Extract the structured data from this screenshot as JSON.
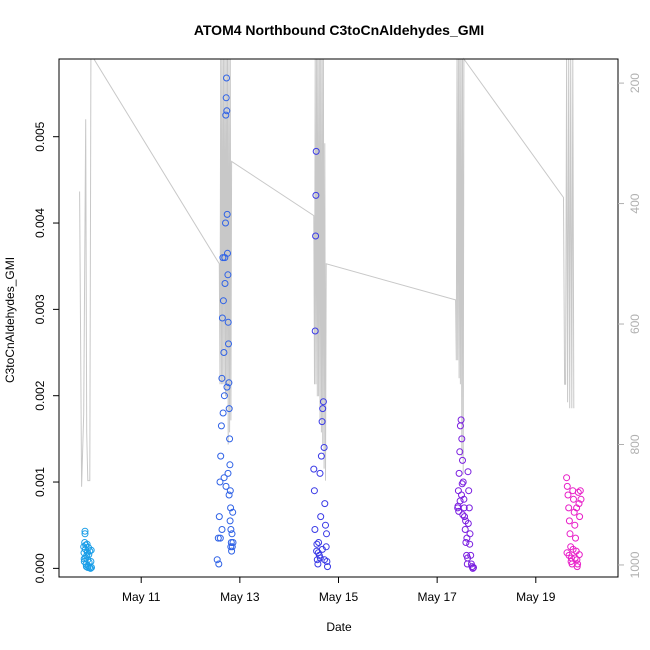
{
  "chart_data": {
    "type": "scatter",
    "title": "ATOM4 Northbound C3toCnAldehydes_GMI",
    "xlabel": "Date",
    "ylabel": "C3toCnAldehydes_GMI",
    "xlim": [
      "2018-05-09T08:00",
      "2018-05-20T16:00"
    ],
    "ylim": [
      -0.0001,
      0.0059
    ],
    "x_ticks": [
      "May 11",
      "May 13",
      "May 15",
      "May 17",
      "May 19"
    ],
    "x_tick_values": [
      "2018-05-11",
      "2018-05-13",
      "2018-05-15",
      "2018-05-17",
      "2018-05-19"
    ],
    "y_ticks": [
      "0.000",
      "0.001",
      "0.002",
      "0.003",
      "0.004",
      "0.005"
    ],
    "y_tick_values": [
      0,
      0.001,
      0.002,
      0.003,
      0.004,
      0.005
    ],
    "y2_ticks": [
      "200",
      "400",
      "600",
      "800",
      "1000"
    ],
    "y2_tick_values": [
      200,
      400,
      600,
      800,
      1000
    ],
    "y2_lim": [
      1020,
      160
    ],
    "grid": false,
    "series": [
      {
        "color": "#1a9ee8",
        "points": [
          [
            "2018-05-09T20:00",
            0.00025
          ],
          [
            "2018-05-09T20:10",
            0.00018
          ],
          [
            "2018-05-09T20:20",
            8e-05
          ],
          [
            "2018-05-09T20:30",
            0.0003
          ],
          [
            "2018-05-09T20:40",
            0.00043
          ],
          [
            "2018-05-09T20:50",
            0.00022
          ],
          [
            "2018-05-09T21:00",
            0.00012
          ],
          [
            "2018-05-09T21:10",
            5e-05
          ],
          [
            "2018-05-09T21:20",
            2e-05
          ],
          [
            "2018-05-09T21:30",
            0.00015
          ],
          [
            "2018-05-09T21:40",
            0.00028
          ],
          [
            "2018-05-09T21:50",
            0.00019
          ],
          [
            "2018-05-09T22:00",
            0.0001
          ],
          [
            "2018-05-09T22:10",
            3e-05
          ],
          [
            "2018-05-09T22:20",
            0.00024
          ],
          [
            "2018-05-09T22:30",
            0.00016
          ],
          [
            "2018-05-09T22:40",
            7e-05
          ],
          [
            "2018-05-09T22:50",
            1e-05
          ],
          [
            "2018-05-09T23:00",
            0.0002
          ],
          [
            "2018-05-09T23:20",
            0.0
          ],
          [
            "2018-05-09T23:30",
            8e-05
          ],
          [
            "2018-05-09T23:40",
            0.00021
          ],
          [
            "2018-05-09T23:50",
            1e-05
          ],
          [
            "2018-05-09T20:40",
            0.0004
          ],
          [
            "2018-05-09T21:00",
            0.00027
          ],
          [
            "2018-05-09T22:00",
            1e-05
          ],
          [
            "2018-05-09T20:15",
            0.00011
          ]
        ]
      },
      {
        "color": "#2f62e6",
        "points": [
          [
            "2018-05-12T13:00",
            0.0001
          ],
          [
            "2018-05-12T13:30",
            0.00035
          ],
          [
            "2018-05-12T14:00",
            0.0006
          ],
          [
            "2018-05-12T14:20",
            0.001
          ],
          [
            "2018-05-12T14:40",
            0.0013
          ],
          [
            "2018-05-12T15:00",
            0.00165
          ],
          [
            "2018-05-12T15:15",
            0.0022
          ],
          [
            "2018-05-12T15:30",
            0.0029
          ],
          [
            "2018-05-12T15:45",
            0.0036
          ],
          [
            "2018-05-12T16:00",
            0.0031
          ],
          [
            "2018-05-12T16:15",
            0.0025
          ],
          [
            "2018-05-12T16:30",
            0.002
          ],
          [
            "2018-05-12T16:45",
            0.0033
          ],
          [
            "2018-05-12T17:00",
            0.004
          ],
          [
            "2018-05-12T17:10",
            0.00525
          ],
          [
            "2018-05-12T17:20",
            0.00545
          ],
          [
            "2018-05-12T17:30",
            0.00568
          ],
          [
            "2018-05-12T17:40",
            0.0053
          ],
          [
            "2018-05-12T17:50",
            0.0041
          ],
          [
            "2018-05-12T18:00",
            0.00365
          ],
          [
            "2018-05-12T18:10",
            0.0034
          ],
          [
            "2018-05-12T18:20",
            0.00285
          ],
          [
            "2018-05-12T18:30",
            0.0026
          ],
          [
            "2018-05-12T18:40",
            0.00215
          ],
          [
            "2018-05-12T18:50",
            0.00185
          ],
          [
            "2018-05-12T19:00",
            0.0015
          ],
          [
            "2018-05-12T19:10",
            0.0012
          ],
          [
            "2018-05-12T19:20",
            0.0009
          ],
          [
            "2018-05-12T19:30",
            0.0007
          ],
          [
            "2018-05-12T19:40",
            0.00045
          ],
          [
            "2018-05-12T19:50",
            0.0003
          ],
          [
            "2018-05-12T20:00",
            0.0002
          ],
          [
            "2018-05-12T20:10",
            0.0004
          ],
          [
            "2018-05-12T20:20",
            0.00025
          ],
          [
            "2018-05-12T20:30",
            0.00065
          ],
          [
            "2018-05-12T20:40",
            0.0003
          ],
          [
            "2018-05-12T14:30",
            0.00035
          ],
          [
            "2018-05-12T15:20",
            0.00045
          ],
          [
            "2018-05-12T16:20",
            0.00105
          ],
          [
            "2018-05-12T17:15",
            0.00095
          ],
          [
            "2018-05-12T18:15",
            0.0011
          ],
          [
            "2018-05-12T19:15",
            0.00055
          ],
          [
            "2018-05-12T13:45",
            5e-05
          ],
          [
            "2018-05-12T16:40",
            0.0036
          ],
          [
            "2018-05-12T17:45",
            0.0021
          ],
          [
            "2018-05-12T18:45",
            0.00085
          ],
          [
            "2018-05-12T15:50",
            0.0018
          ],
          [
            "2018-05-12T19:35",
            0.00025
          ]
        ]
      },
      {
        "color": "#3a3ae6",
        "points": [
          [
            "2018-05-14T12:00",
            0.00115
          ],
          [
            "2018-05-14T12:15",
            0.0009
          ],
          [
            "2018-05-14T12:30",
            0.00045
          ],
          [
            "2018-05-14T12:40",
            0.00275
          ],
          [
            "2018-05-14T12:50",
            0.00385
          ],
          [
            "2018-05-14T13:00",
            0.00432
          ],
          [
            "2018-05-14T13:10",
            0.00483
          ],
          [
            "2018-05-14T13:20",
            0.0002
          ],
          [
            "2018-05-14T13:40",
            0.0001
          ],
          [
            "2018-05-14T14:00",
            5e-05
          ],
          [
            "2018-05-14T14:20",
            0.0003
          ],
          [
            "2018-05-14T14:40",
            0.00015
          ],
          [
            "2018-05-14T15:00",
            0.0011
          ],
          [
            "2018-05-14T15:20",
            0.0006
          ],
          [
            "2018-05-14T15:40",
            0.0013
          ],
          [
            "2018-05-14T16:00",
            0.0017
          ],
          [
            "2018-05-14T16:20",
            0.00185
          ],
          [
            "2018-05-14T16:40",
            0.00193
          ],
          [
            "2018-05-14T17:00",
            0.0014
          ],
          [
            "2018-05-14T17:20",
            0.00075
          ],
          [
            "2018-05-14T17:40",
            0.0005
          ],
          [
            "2018-05-14T18:00",
            0.00025
          ],
          [
            "2018-05-14T18:20",
            8e-05
          ],
          [
            "2018-05-14T18:40",
            2e-05
          ],
          [
            "2018-05-14T14:10",
            0.00018
          ],
          [
            "2018-05-14T15:10",
            0.00012
          ],
          [
            "2018-05-14T16:10",
            0.00022
          ],
          [
            "2018-05-14T17:10",
            0.0001
          ],
          [
            "2018-05-14T13:30",
            0.00028
          ],
          [
            "2018-05-14T18:10",
            0.0004
          ]
        ]
      },
      {
        "color": "#7a1ee0",
        "points": [
          [
            "2018-05-17T10:00",
            0.0007
          ],
          [
            "2018-05-17T10:20",
            0.0009
          ],
          [
            "2018-05-17T10:40",
            0.0011
          ],
          [
            "2018-05-17T11:00",
            0.00135
          ],
          [
            "2018-05-17T11:20",
            0.00165
          ],
          [
            "2018-05-17T11:40",
            0.00172
          ],
          [
            "2018-05-17T12:00",
            0.0015
          ],
          [
            "2018-05-17T12:20",
            0.00125
          ],
          [
            "2018-05-17T12:40",
            0.001
          ],
          [
            "2018-05-17T13:00",
            0.0008
          ],
          [
            "2018-05-17T13:20",
            0.0006
          ],
          [
            "2018-05-17T13:40",
            0.00045
          ],
          [
            "2018-05-17T14:00",
            0.0003
          ],
          [
            "2018-05-17T14:20",
            0.00015
          ],
          [
            "2018-05-17T14:40",
            5e-05
          ],
          [
            "2018-05-17T15:00",
            0.00112
          ],
          [
            "2018-05-17T15:20",
            0.0009
          ],
          [
            "2018-05-17T15:40",
            0.0007
          ],
          [
            "2018-05-17T16:00",
            0.0004
          ],
          [
            "2018-05-17T16:20",
            0.00015
          ],
          [
            "2018-05-17T16:40",
            5e-05
          ],
          [
            "2018-05-17T17:00",
            2e-05
          ],
          [
            "2018-05-17T17:20",
            0.0
          ],
          [
            "2018-05-17T17:40",
            1e-05
          ],
          [
            "2018-05-17T10:10",
            0.00072
          ],
          [
            "2018-05-17T10:30",
            0.00066
          ],
          [
            "2018-05-17T11:10",
            0.00078
          ],
          [
            "2018-05-17T11:50",
            0.00085
          ],
          [
            "2018-05-17T12:30",
            0.00062
          ],
          [
            "2018-05-17T13:10",
            0.0007
          ],
          [
            "2018-05-17T13:50",
            0.00055
          ],
          [
            "2018-05-17T14:30",
            0.00035
          ],
          [
            "2018-05-17T15:10",
            0.00052
          ],
          [
            "2018-05-17T15:50",
            0.00028
          ],
          [
            "2018-05-17T12:10",
            0.00098
          ],
          [
            "2018-05-17T14:50",
            0.00012
          ]
        ]
      },
      {
        "color": "#e81ec8",
        "points": [
          [
            "2018-05-19T15:00",
            0.00105
          ],
          [
            "2018-05-19T15:20",
            0.00095
          ],
          [
            "2018-05-19T15:40",
            0.00085
          ],
          [
            "2018-05-19T16:00",
            0.0007
          ],
          [
            "2018-05-19T16:20",
            0.00055
          ],
          [
            "2018-05-19T16:40",
            0.0004
          ],
          [
            "2018-05-19T17:00",
            0.00025
          ],
          [
            "2018-05-19T17:20",
            0.00012
          ],
          [
            "2018-05-19T17:40",
            5e-05
          ],
          [
            "2018-05-19T18:00",
            0.0009
          ],
          [
            "2018-05-19T18:20",
            0.0008
          ],
          [
            "2018-05-19T18:40",
            0.00065
          ],
          [
            "2018-05-19T19:00",
            0.0005
          ],
          [
            "2018-05-19T19:20",
            0.00035
          ],
          [
            "2018-05-19T19:40",
            0.0002
          ],
          [
            "2018-05-19T20:00",
            0.0001
          ],
          [
            "2018-05-19T20:20",
            5e-05
          ],
          [
            "2018-05-19T20:40",
            0.00088
          ],
          [
            "2018-05-19T21:00",
            0.00075
          ],
          [
            "2018-05-19T21:20",
            0.0006
          ],
          [
            "2018-05-19T21:40",
            0.0009
          ],
          [
            "2018-05-19T22:00",
            0.0008
          ],
          [
            "2018-05-19T15:10",
            0.00018
          ],
          [
            "2018-05-19T16:10",
            0.00015
          ],
          [
            "2018-05-19T17:10",
            8e-05
          ],
          [
            "2018-05-19T18:10",
            0.00022
          ],
          [
            "2018-05-19T19:10",
            0.00012
          ],
          [
            "2018-05-19T20:10",
            2e-05
          ],
          [
            "2018-05-19T21:10",
            0.00016
          ],
          [
            "2018-05-19T19:50",
            0.0007
          ]
        ]
      }
    ],
    "pressure_line": {
      "color": "#c8c8c8",
      "points": [
        [
          "2018-05-09T18:00",
          380
        ],
        [
          "2018-05-09T19:00",
          870
        ],
        [
          "2018-05-09T20:00",
          750
        ],
        [
          "2018-05-09T21:00",
          260
        ],
        [
          "2018-05-09T21:30",
          780
        ],
        [
          "2018-05-09T22:00",
          860
        ],
        [
          "2018-05-09T23:00",
          860
        ],
        [
          "2018-05-09T23:30",
          150
        ],
        [
          "2018-05-10T01:00",
          150
        ],
        [
          "2018-05-12T14:00",
          500
        ],
        [
          "2018-05-12T14:20",
          700
        ],
        [
          "2018-05-12T14:40",
          150
        ],
        [
          "2018-05-12T15:00",
          700
        ],
        [
          "2018-05-12T15:20",
          150
        ],
        [
          "2018-05-12T15:40",
          700
        ],
        [
          "2018-05-12T16:00",
          150
        ],
        [
          "2018-05-12T16:20",
          700
        ],
        [
          "2018-05-12T16:40",
          150
        ],
        [
          "2018-05-12T17:00",
          720
        ],
        [
          "2018-05-12T17:20",
          150
        ],
        [
          "2018-05-12T17:40",
          720
        ],
        [
          "2018-05-12T18:00",
          150
        ],
        [
          "2018-05-12T18:20",
          800
        ],
        [
          "2018-05-12T18:40",
          150
        ],
        [
          "2018-05-12T19:00",
          780
        ],
        [
          "2018-05-12T19:20",
          150
        ],
        [
          "2018-05-12T19:40",
          760
        ],
        [
          "2018-05-12T20:00",
          330
        ],
        [
          "2018-05-14T12:00",
          420
        ],
        [
          "2018-05-14T12:20",
          700
        ],
        [
          "2018-05-14T12:40",
          150
        ],
        [
          "2018-05-14T13:00",
          700
        ],
        [
          "2018-05-14T13:20",
          150
        ],
        [
          "2018-05-14T13:40",
          720
        ],
        [
          "2018-05-14T14:00",
          150
        ],
        [
          "2018-05-14T14:20",
          720
        ],
        [
          "2018-05-14T14:40",
          150
        ],
        [
          "2018-05-14T15:00",
          760
        ],
        [
          "2018-05-14T15:20",
          150
        ],
        [
          "2018-05-14T15:40",
          780
        ],
        [
          "2018-05-14T16:00",
          150
        ],
        [
          "2018-05-14T16:20",
          800
        ],
        [
          "2018-05-14T16:40",
          150
        ],
        [
          "2018-05-14T17:00",
          840
        ],
        [
          "2018-05-14T17:20",
          300
        ],
        [
          "2018-05-14T17:40",
          860
        ],
        [
          "2018-05-14T18:00",
          500
        ],
        [
          "2018-05-17T09:00",
          560
        ],
        [
          "2018-05-17T09:20",
          660
        ],
        [
          "2018-05-17T09:40",
          150
        ],
        [
          "2018-05-17T10:00",
          660
        ],
        [
          "2018-05-17T10:20",
          150
        ],
        [
          "2018-05-17T10:40",
          690
        ],
        [
          "2018-05-17T11:00",
          150
        ],
        [
          "2018-05-17T11:20",
          700
        ],
        [
          "2018-05-17T11:40",
          150
        ],
        [
          "2018-05-17T12:00",
          820
        ],
        [
          "2018-05-17T12:20",
          150
        ],
        [
          "2018-05-17T12:40",
          850
        ],
        [
          "2018-05-17T13:00",
          150
        ],
        [
          "2018-05-19T13:30",
          390
        ],
        [
          "2018-05-19T14:00",
          700
        ],
        [
          "2018-05-19T14:30",
          700
        ],
        [
          "2018-05-19T15:00",
          150
        ],
        [
          "2018-05-19T15:30",
          730
        ],
        [
          "2018-05-19T16:00",
          150
        ],
        [
          "2018-05-19T16:30",
          740
        ],
        [
          "2018-05-19T17:00",
          150
        ],
        [
          "2018-05-19T17:30",
          740
        ],
        [
          "2018-05-19T18:00",
          150
        ],
        [
          "2018-05-19T18:30",
          740
        ]
      ]
    }
  }
}
